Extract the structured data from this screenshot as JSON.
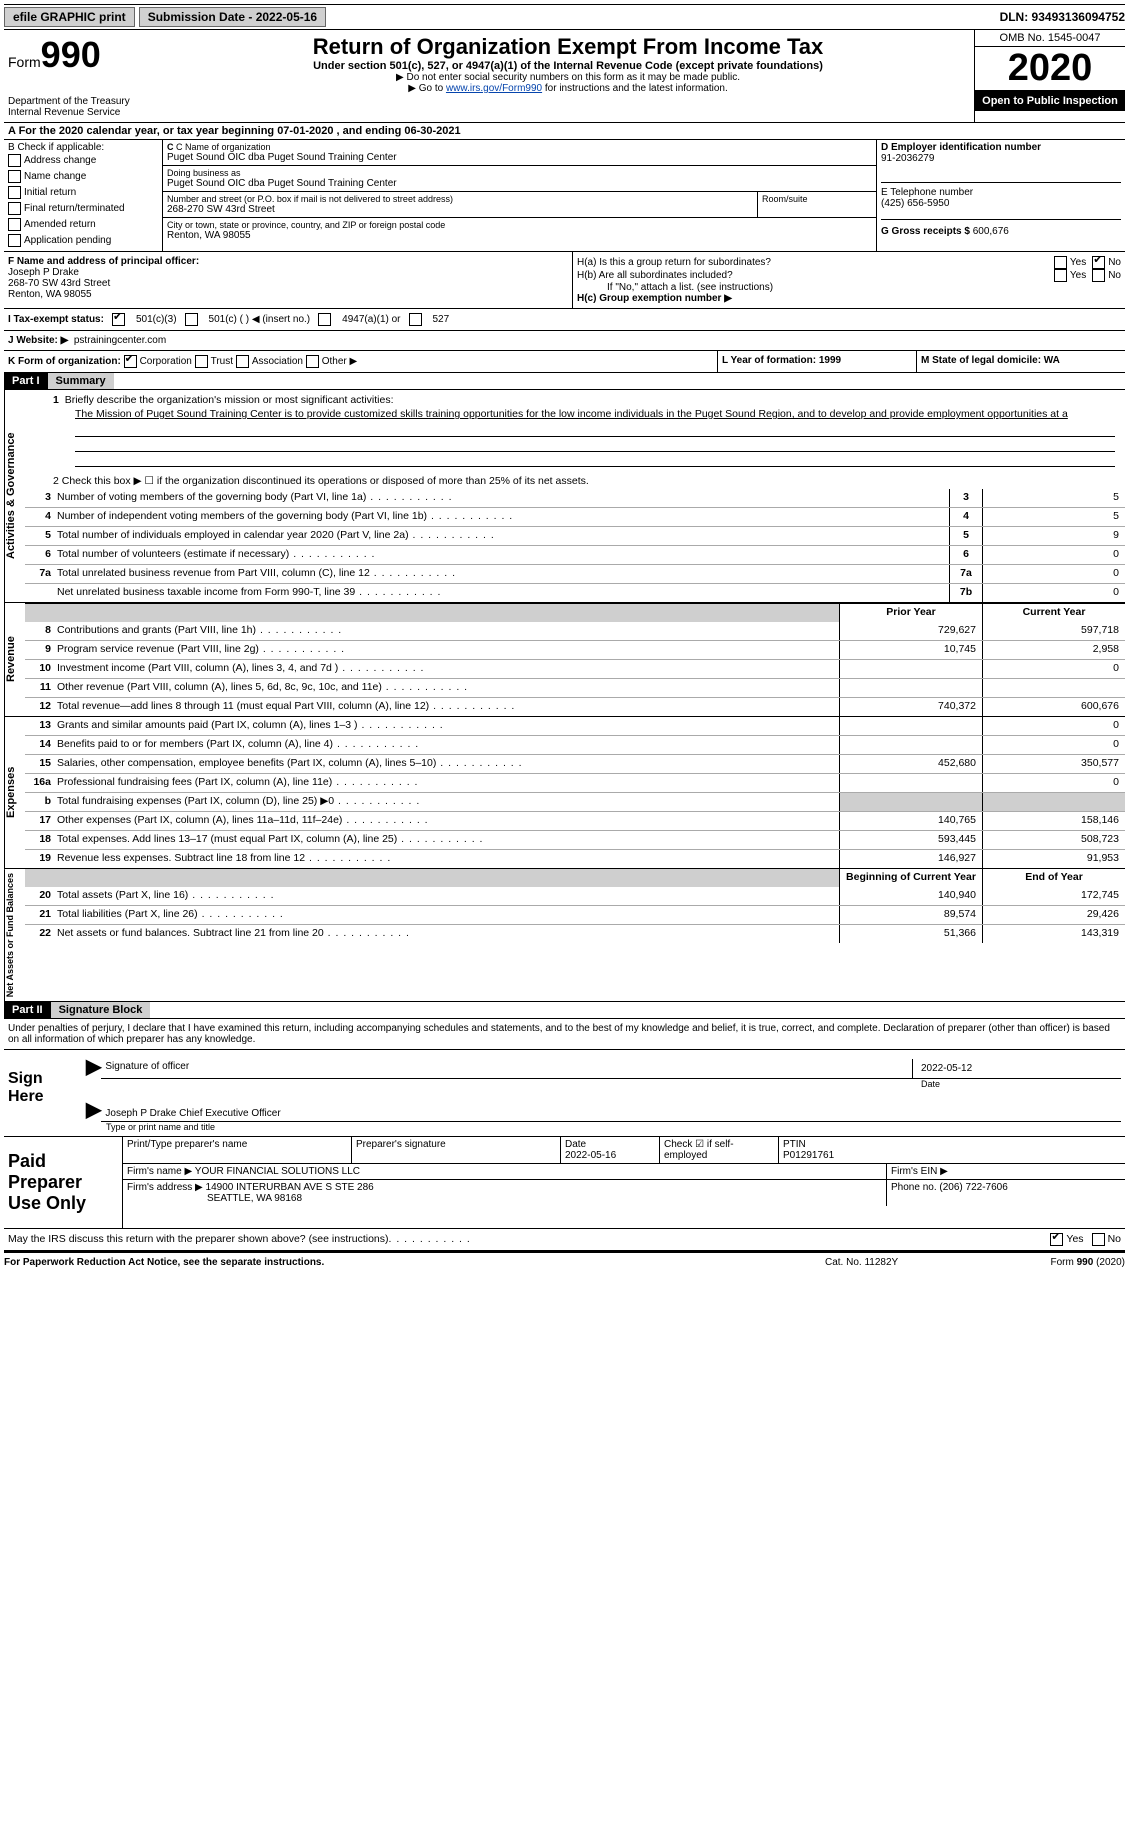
{
  "topbar": {
    "efile": "efile GRAPHIC print",
    "submission_label": "Submission Date - 2022-05-16",
    "dln": "DLN: 93493136094752"
  },
  "header": {
    "form": "Form",
    "form_num": "990",
    "dept": "Department of the Treasury",
    "irs": "Internal Revenue Service",
    "title": "Return of Organization Exempt From Income Tax",
    "sub": "Under section 501(c), 527, or 4947(a)(1) of the Internal Revenue Code (except private foundations)",
    "note1": "▶ Do not enter social security numbers on this form as it may be made public.",
    "note2_pre": "▶ Go to ",
    "note2_link": "www.irs.gov/Form990",
    "note2_post": " for instructions and the latest information.",
    "omb": "OMB No. 1545-0047",
    "year": "2020",
    "open": "Open to Public Inspection"
  },
  "period": "A For the 2020 calendar year, or tax year beginning 07-01-2020   , and ending 06-30-2021",
  "blockB": {
    "label": "B Check if applicable:",
    "items": [
      "Address change",
      "Name change",
      "Initial return",
      "Final return/terminated",
      "Amended return",
      "Application pending"
    ]
  },
  "blockC": {
    "name_label": "C Name of organization",
    "name": "Puget Sound OIC dba Puget Sound Training Center",
    "dba_label": "Doing business as",
    "dba": "Puget Sound OIC dba Puget Sound Training Center",
    "addr_label": "Number and street (or P.O. box if mail is not delivered to street address)",
    "room_label": "Room/suite",
    "addr": "268-270 SW 43rd Street",
    "city_label": "City or town, state or province, country, and ZIP or foreign postal code",
    "city": "Renton, WA  98055"
  },
  "blockD": {
    "label": "D Employer identification number",
    "value": "91-2036279"
  },
  "blockE": {
    "label": "E Telephone number",
    "value": "(425) 656-5950"
  },
  "blockG": {
    "label": "G Gross receipts $",
    "value": "600,676"
  },
  "blockF": {
    "label": "F  Name and address of principal officer:",
    "name": "Joseph P Drake",
    "addr1": "268-70 SW 43rd Street",
    "addr2": "Renton, WA  98055"
  },
  "blockH": {
    "a_label": "H(a)  Is this a group return for subordinates?",
    "a_yes": "Yes",
    "a_no": "No",
    "b_label": "H(b)  Are all subordinates included?",
    "b_yes": "Yes",
    "b_no": "No",
    "note": "If \"No,\" attach a list. (see instructions)",
    "c_label": "H(c)  Group exemption number ▶"
  },
  "rowI": {
    "label": "I   Tax-exempt status:",
    "opt1": "501(c)(3)",
    "opt2": "501(c) ( )  ◀ (insert no.)",
    "opt3": "4947(a)(1) or",
    "opt4": "527"
  },
  "rowJ": {
    "label": "J   Website: ▶",
    "value": "pstrainingcenter.com"
  },
  "rowK": {
    "label": "K Form of organization:",
    "opts": [
      "Corporation",
      "Trust",
      "Association",
      "Other ▶"
    ],
    "L": "L Year of formation: 1999",
    "M": "M State of legal domicile: WA"
  },
  "part1": {
    "header": "Part I",
    "title": "Summary"
  },
  "governance": {
    "label": "Activities & Governance",
    "l1_label": "1   Briefly describe the organization's mission or most significant activities:",
    "l1_text": "The Mission of Puget Sound Training Center is to provide customized skills training opportunities for the low income individuals in the Puget Sound Region, and to develop and provide employment opportunities at a",
    "l2": "2   Check this box ▶ ☐  if the organization discontinued its operations or disposed of more than 25% of its net assets.",
    "lines": [
      {
        "n": "3",
        "desc": "Number of voting members of the governing body (Part VI, line 1a)",
        "box": "3",
        "val": "5"
      },
      {
        "n": "4",
        "desc": "Number of independent voting members of the governing body (Part VI, line 1b)",
        "box": "4",
        "val": "5"
      },
      {
        "n": "5",
        "desc": "Total number of individuals employed in calendar year 2020 (Part V, line 2a)",
        "box": "5",
        "val": "9"
      },
      {
        "n": "6",
        "desc": "Total number of volunteers (estimate if necessary)",
        "box": "6",
        "val": "0"
      },
      {
        "n": "7a",
        "desc": "Total unrelated business revenue from Part VIII, column (C), line 12",
        "box": "7a",
        "val": "0"
      },
      {
        "n": "",
        "desc": "Net unrelated business taxable income from Form 990-T, line 39",
        "box": "7b",
        "val": "0"
      }
    ]
  },
  "revenue": {
    "label": "Revenue",
    "header_prior": "Prior Year",
    "header_current": "Current Year",
    "lines": [
      {
        "n": "8",
        "desc": "Contributions and grants (Part VIII, line 1h)",
        "prior": "729,627",
        "current": "597,718"
      },
      {
        "n": "9",
        "desc": "Program service revenue (Part VIII, line 2g)",
        "prior": "10,745",
        "current": "2,958"
      },
      {
        "n": "10",
        "desc": "Investment income (Part VIII, column (A), lines 3, 4, and 7d )",
        "prior": "",
        "current": "0"
      },
      {
        "n": "11",
        "desc": "Other revenue (Part VIII, column (A), lines 5, 6d, 8c, 9c, 10c, and 11e)",
        "prior": "",
        "current": ""
      },
      {
        "n": "12",
        "desc": "Total revenue—add lines 8 through 11 (must equal Part VIII, column (A), line 12)",
        "prior": "740,372",
        "current": "600,676"
      }
    ]
  },
  "expenses": {
    "label": "Expenses",
    "lines": [
      {
        "n": "13",
        "desc": "Grants and similar amounts paid (Part IX, column (A), lines 1–3 )",
        "prior": "",
        "current": "0"
      },
      {
        "n": "14",
        "desc": "Benefits paid to or for members (Part IX, column (A), line 4)",
        "prior": "",
        "current": "0"
      },
      {
        "n": "15",
        "desc": "Salaries, other compensation, employee benefits (Part IX, column (A), lines 5–10)",
        "prior": "452,680",
        "current": "350,577"
      },
      {
        "n": "16a",
        "desc": "Professional fundraising fees (Part IX, column (A), line 11e)",
        "prior": "",
        "current": "0"
      },
      {
        "n": "b",
        "desc": "Total fundraising expenses (Part IX, column (D), line 25) ▶0",
        "prior": "shaded",
        "current": "shaded"
      },
      {
        "n": "17",
        "desc": "Other expenses (Part IX, column (A), lines 11a–11d, 11f–24e)",
        "prior": "140,765",
        "current": "158,146"
      },
      {
        "n": "18",
        "desc": "Total expenses. Add lines 13–17 (must equal Part IX, column (A), line 25)",
        "prior": "593,445",
        "current": "508,723"
      },
      {
        "n": "19",
        "desc": "Revenue less expenses. Subtract line 18 from line 12",
        "prior": "146,927",
        "current": "91,953"
      }
    ]
  },
  "netassets": {
    "label": "Net Assets or Fund Balances",
    "header_begin": "Beginning of Current Year",
    "header_end": "End of Year",
    "lines": [
      {
        "n": "20",
        "desc": "Total assets (Part X, line 16)",
        "prior": "140,940",
        "current": "172,745"
      },
      {
        "n": "21",
        "desc": "Total liabilities (Part X, line 26)",
        "prior": "89,574",
        "current": "29,426"
      },
      {
        "n": "22",
        "desc": "Net assets or fund balances. Subtract line 21 from line 20",
        "prior": "51,366",
        "current": "143,319"
      }
    ]
  },
  "part2": {
    "header": "Part II",
    "title": "Signature Block"
  },
  "sig": {
    "text": "Under penalties of perjury, I declare that I have examined this return, including accompanying schedules and statements, and to the best of my knowledge and belief, it is true, correct, and complete. Declaration of preparer (other than officer) is based on all information of which preparer has any knowledge.",
    "sign_here": "Sign Here",
    "sig_officer": "Signature of officer",
    "date": "Date",
    "date_val": "2022-05-12",
    "name": "Joseph P Drake  Chief Executive Officer",
    "type_name": "Type or print name and title"
  },
  "paidprep": {
    "label": "Paid Preparer Use Only",
    "r1": {
      "name_label": "Print/Type preparer's name",
      "sig_label": "Preparer's signature",
      "date_label": "Date",
      "date": "2022-05-16",
      "check_label": "Check ☑ if self-employed",
      "ptin_label": "PTIN",
      "ptin": "P01291761"
    },
    "r2": {
      "firm_label": "Firm's name    ▶",
      "firm": "YOUR FINANCIAL SOLUTIONS LLC",
      "ein_label": "Firm's EIN ▶"
    },
    "r3": {
      "addr_label": "Firm's address ▶",
      "addr1": "14900 INTERURBAN AVE S STE 286",
      "addr2": "SEATTLE, WA  98168",
      "phone_label": "Phone no.",
      "phone": "(206) 722-7606"
    }
  },
  "discuss": {
    "text": "May the IRS discuss this return with the preparer shown above? (see instructions)",
    "yes": "Yes",
    "no": "No"
  },
  "footer": {
    "left": "For Paperwork Reduction Act Notice, see the separate instructions.",
    "mid": "Cat. No. 11282Y",
    "right": "Form 990 (2020)"
  }
}
